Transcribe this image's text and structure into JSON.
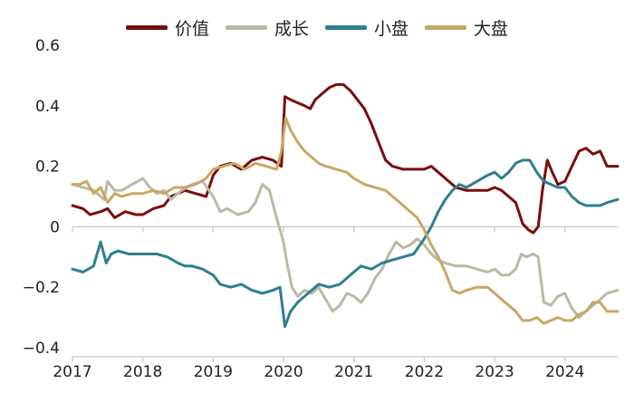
{
  "chart_data": {
    "type": "line",
    "title": "",
    "xlabel": "",
    "ylabel": "",
    "xlim": [
      2017.0,
      2024.75
    ],
    "ylim": [
      -0.4,
      0.6
    ],
    "y_ticks": [
      0.6,
      0.4,
      0.2,
      0,
      -0.2,
      -0.4
    ],
    "y_tick_labels": [
      "0.6",
      "0.4",
      "0.2",
      "0",
      "−0.2",
      "−0.4"
    ],
    "x_ticks": [
      2017,
      2018,
      2019,
      2020,
      2021,
      2022,
      2023,
      2024
    ],
    "x_tick_labels": [
      "2017",
      "2018",
      "2019",
      "2020",
      "2021",
      "2022",
      "2023",
      "2024"
    ],
    "grid": false,
    "legend_position": "top-center",
    "series": [
      {
        "name": "价值",
        "color": "#7a0d0d",
        "points": [
          [
            2017.0,
            0.07
          ],
          [
            2017.15,
            0.06
          ],
          [
            2017.25,
            0.04
          ],
          [
            2017.4,
            0.05
          ],
          [
            2017.5,
            0.06
          ],
          [
            2017.6,
            0.03
          ],
          [
            2017.75,
            0.05
          ],
          [
            2017.9,
            0.04
          ],
          [
            2018.0,
            0.04
          ],
          [
            2018.15,
            0.06
          ],
          [
            2018.3,
            0.07
          ],
          [
            2018.4,
            0.1
          ],
          [
            2018.5,
            0.11
          ],
          [
            2018.6,
            0.12
          ],
          [
            2018.75,
            0.11
          ],
          [
            2018.9,
            0.1
          ],
          [
            2019.0,
            0.17
          ],
          [
            2019.1,
            0.2
          ],
          [
            2019.25,
            0.21
          ],
          [
            2019.4,
            0.19
          ],
          [
            2019.55,
            0.22
          ],
          [
            2019.7,
            0.23
          ],
          [
            2019.85,
            0.22
          ],
          [
            2019.97,
            0.2
          ],
          [
            2020.02,
            0.43
          ],
          [
            2020.1,
            0.42
          ],
          [
            2020.2,
            0.41
          ],
          [
            2020.3,
            0.4
          ],
          [
            2020.38,
            0.39
          ],
          [
            2020.45,
            0.42
          ],
          [
            2020.55,
            0.44
          ],
          [
            2020.65,
            0.46
          ],
          [
            2020.75,
            0.47
          ],
          [
            2020.85,
            0.47
          ],
          [
            2020.95,
            0.45
          ],
          [
            2021.05,
            0.42
          ],
          [
            2021.15,
            0.39
          ],
          [
            2021.25,
            0.34
          ],
          [
            2021.35,
            0.28
          ],
          [
            2021.45,
            0.22
          ],
          [
            2021.55,
            0.2
          ],
          [
            2021.7,
            0.19
          ],
          [
            2021.85,
            0.19
          ],
          [
            2022.0,
            0.19
          ],
          [
            2022.1,
            0.2
          ],
          [
            2022.2,
            0.18
          ],
          [
            2022.3,
            0.16
          ],
          [
            2022.45,
            0.13
          ],
          [
            2022.6,
            0.12
          ],
          [
            2022.75,
            0.12
          ],
          [
            2022.9,
            0.12
          ],
          [
            2023.0,
            0.13
          ],
          [
            2023.1,
            0.12
          ],
          [
            2023.2,
            0.1
          ],
          [
            2023.3,
            0.08
          ],
          [
            2023.4,
            0.01
          ],
          [
            2023.48,
            -0.01
          ],
          [
            2023.55,
            -0.02
          ],
          [
            2023.62,
            0.0
          ],
          [
            2023.68,
            0.12
          ],
          [
            2023.75,
            0.22
          ],
          [
            2023.82,
            0.18
          ],
          [
            2023.9,
            0.14
          ],
          [
            2024.0,
            0.15
          ],
          [
            2024.1,
            0.2
          ],
          [
            2024.2,
            0.25
          ],
          [
            2024.3,
            0.26
          ],
          [
            2024.4,
            0.24
          ],
          [
            2024.5,
            0.25
          ],
          [
            2024.6,
            0.2
          ],
          [
            2024.75,
            0.2
          ]
        ]
      },
      {
        "name": "成长",
        "color": "#bcb9a7",
        "points": [
          [
            2017.0,
            0.14
          ],
          [
            2017.15,
            0.13
          ],
          [
            2017.3,
            0.12
          ],
          [
            2017.45,
            0.09
          ],
          [
            2017.5,
            0.15
          ],
          [
            2017.6,
            0.12
          ],
          [
            2017.7,
            0.12
          ],
          [
            2017.85,
            0.14
          ],
          [
            2018.0,
            0.16
          ],
          [
            2018.1,
            0.13
          ],
          [
            2018.2,
            0.11
          ],
          [
            2018.3,
            0.12
          ],
          [
            2018.4,
            0.09
          ],
          [
            2018.55,
            0.12
          ],
          [
            2018.7,
            0.14
          ],
          [
            2018.85,
            0.15
          ],
          [
            2019.0,
            0.1
          ],
          [
            2019.1,
            0.05
          ],
          [
            2019.2,
            0.06
          ],
          [
            2019.35,
            0.04
          ],
          [
            2019.5,
            0.05
          ],
          [
            2019.6,
            0.08
          ],
          [
            2019.7,
            0.14
          ],
          [
            2019.8,
            0.12
          ],
          [
            2019.9,
            0.03
          ],
          [
            2020.0,
            -0.05
          ],
          [
            2020.05,
            -0.12
          ],
          [
            2020.12,
            -0.2
          ],
          [
            2020.2,
            -0.23
          ],
          [
            2020.3,
            -0.21
          ],
          [
            2020.4,
            -0.22
          ],
          [
            2020.5,
            -0.2
          ],
          [
            2020.6,
            -0.24
          ],
          [
            2020.7,
            -0.28
          ],
          [
            2020.8,
            -0.26
          ],
          [
            2020.9,
            -0.22
          ],
          [
            2021.0,
            -0.23
          ],
          [
            2021.1,
            -0.25
          ],
          [
            2021.2,
            -0.22
          ],
          [
            2021.3,
            -0.17
          ],
          [
            2021.4,
            -0.14
          ],
          [
            2021.5,
            -0.09
          ],
          [
            2021.6,
            -0.05
          ],
          [
            2021.7,
            -0.07
          ],
          [
            2021.8,
            -0.06
          ],
          [
            2021.9,
            -0.04
          ],
          [
            2022.0,
            -0.06
          ],
          [
            2022.1,
            -0.09
          ],
          [
            2022.2,
            -0.11
          ],
          [
            2022.3,
            -0.12
          ],
          [
            2022.45,
            -0.13
          ],
          [
            2022.6,
            -0.13
          ],
          [
            2022.75,
            -0.14
          ],
          [
            2022.9,
            -0.15
          ],
          [
            2023.0,
            -0.14
          ],
          [
            2023.1,
            -0.16
          ],
          [
            2023.2,
            -0.16
          ],
          [
            2023.3,
            -0.14
          ],
          [
            2023.38,
            -0.09
          ],
          [
            2023.45,
            -0.1
          ],
          [
            2023.55,
            -0.09
          ],
          [
            2023.62,
            -0.1
          ],
          [
            2023.7,
            -0.25
          ],
          [
            2023.8,
            -0.26
          ],
          [
            2023.9,
            -0.23
          ],
          [
            2024.0,
            -0.22
          ],
          [
            2024.1,
            -0.27
          ],
          [
            2024.2,
            -0.3
          ],
          [
            2024.3,
            -0.28
          ],
          [
            2024.4,
            -0.26
          ],
          [
            2024.5,
            -0.24
          ],
          [
            2024.6,
            -0.22
          ],
          [
            2024.75,
            -0.21
          ]
        ]
      },
      {
        "name": "小盘",
        "color": "#2e7f90",
        "points": [
          [
            2017.0,
            -0.14
          ],
          [
            2017.15,
            -0.15
          ],
          [
            2017.3,
            -0.13
          ],
          [
            2017.4,
            -0.05
          ],
          [
            2017.48,
            -0.12
          ],
          [
            2017.55,
            -0.09
          ],
          [
            2017.65,
            -0.08
          ],
          [
            2017.8,
            -0.09
          ],
          [
            2018.0,
            -0.09
          ],
          [
            2018.2,
            -0.09
          ],
          [
            2018.35,
            -0.1
          ],
          [
            2018.5,
            -0.12
          ],
          [
            2018.6,
            -0.13
          ],
          [
            2018.7,
            -0.13
          ],
          [
            2018.85,
            -0.14
          ],
          [
            2019.0,
            -0.16
          ],
          [
            2019.1,
            -0.19
          ],
          [
            2019.25,
            -0.2
          ],
          [
            2019.4,
            -0.19
          ],
          [
            2019.55,
            -0.21
          ],
          [
            2019.7,
            -0.22
          ],
          [
            2019.85,
            -0.21
          ],
          [
            2019.95,
            -0.2
          ],
          [
            2020.02,
            -0.33
          ],
          [
            2020.1,
            -0.28
          ],
          [
            2020.2,
            -0.25
          ],
          [
            2020.3,
            -0.23
          ],
          [
            2020.4,
            -0.21
          ],
          [
            2020.5,
            -0.19
          ],
          [
            2020.65,
            -0.2
          ],
          [
            2020.8,
            -0.19
          ],
          [
            2020.95,
            -0.16
          ],
          [
            2021.1,
            -0.13
          ],
          [
            2021.25,
            -0.14
          ],
          [
            2021.4,
            -0.12
          ],
          [
            2021.55,
            -0.11
          ],
          [
            2021.7,
            -0.1
          ],
          [
            2021.85,
            -0.09
          ],
          [
            2022.0,
            -0.04
          ],
          [
            2022.1,
            0.0
          ],
          [
            2022.2,
            0.05
          ],
          [
            2022.3,
            0.09
          ],
          [
            2022.4,
            0.12
          ],
          [
            2022.5,
            0.14
          ],
          [
            2022.6,
            0.13
          ],
          [
            2022.75,
            0.15
          ],
          [
            2022.9,
            0.17
          ],
          [
            2023.0,
            0.18
          ],
          [
            2023.1,
            0.16
          ],
          [
            2023.2,
            0.18
          ],
          [
            2023.3,
            0.21
          ],
          [
            2023.4,
            0.22
          ],
          [
            2023.5,
            0.22
          ],
          [
            2023.6,
            0.18
          ],
          [
            2023.7,
            0.15
          ],
          [
            2023.8,
            0.14
          ],
          [
            2023.9,
            0.13
          ],
          [
            2024.0,
            0.13
          ],
          [
            2024.1,
            0.1
          ],
          [
            2024.2,
            0.08
          ],
          [
            2024.3,
            0.07
          ],
          [
            2024.4,
            0.07
          ],
          [
            2024.5,
            0.07
          ],
          [
            2024.6,
            0.08
          ],
          [
            2024.75,
            0.09
          ]
        ]
      },
      {
        "name": "大盘",
        "color": "#c9a765",
        "points": [
          [
            2017.0,
            0.14
          ],
          [
            2017.1,
            0.14
          ],
          [
            2017.2,
            0.15
          ],
          [
            2017.3,
            0.11
          ],
          [
            2017.4,
            0.13
          ],
          [
            2017.5,
            0.08
          ],
          [
            2017.6,
            0.11
          ],
          [
            2017.7,
            0.1
          ],
          [
            2017.85,
            0.11
          ],
          [
            2018.0,
            0.11
          ],
          [
            2018.15,
            0.12
          ],
          [
            2018.3,
            0.11
          ],
          [
            2018.45,
            0.13
          ],
          [
            2018.6,
            0.13
          ],
          [
            2018.75,
            0.14
          ],
          [
            2018.9,
            0.16
          ],
          [
            2019.0,
            0.19
          ],
          [
            2019.15,
            0.2
          ],
          [
            2019.3,
            0.21
          ],
          [
            2019.45,
            0.19
          ],
          [
            2019.6,
            0.21
          ],
          [
            2019.75,
            0.2
          ],
          [
            2019.9,
            0.19
          ],
          [
            2019.97,
            0.25
          ],
          [
            2020.03,
            0.36
          ],
          [
            2020.1,
            0.32
          ],
          [
            2020.2,
            0.28
          ],
          [
            2020.3,
            0.25
          ],
          [
            2020.4,
            0.23
          ],
          [
            2020.5,
            0.21
          ],
          [
            2020.6,
            0.2
          ],
          [
            2020.75,
            0.19
          ],
          [
            2020.9,
            0.18
          ],
          [
            2021.0,
            0.16
          ],
          [
            2021.15,
            0.14
          ],
          [
            2021.3,
            0.13
          ],
          [
            2021.45,
            0.12
          ],
          [
            2021.6,
            0.09
          ],
          [
            2021.75,
            0.06
          ],
          [
            2021.9,
            0.03
          ],
          [
            2022.0,
            -0.01
          ],
          [
            2022.1,
            -0.06
          ],
          [
            2022.2,
            -0.1
          ],
          [
            2022.3,
            -0.15
          ],
          [
            2022.4,
            -0.21
          ],
          [
            2022.5,
            -0.22
          ],
          [
            2022.6,
            -0.21
          ],
          [
            2022.75,
            -0.2
          ],
          [
            2022.9,
            -0.2
          ],
          [
            2023.0,
            -0.22
          ],
          [
            2023.1,
            -0.24
          ],
          [
            2023.2,
            -0.26
          ],
          [
            2023.3,
            -0.28
          ],
          [
            2023.4,
            -0.31
          ],
          [
            2023.5,
            -0.31
          ],
          [
            2023.6,
            -0.3
          ],
          [
            2023.7,
            -0.32
          ],
          [
            2023.8,
            -0.31
          ],
          [
            2023.9,
            -0.3
          ],
          [
            2024.0,
            -0.31
          ],
          [
            2024.1,
            -0.31
          ],
          [
            2024.2,
            -0.29
          ],
          [
            2024.3,
            -0.28
          ],
          [
            2024.4,
            -0.25
          ],
          [
            2024.5,
            -0.25
          ],
          [
            2024.6,
            -0.28
          ],
          [
            2024.75,
            -0.28
          ]
        ]
      }
    ]
  }
}
